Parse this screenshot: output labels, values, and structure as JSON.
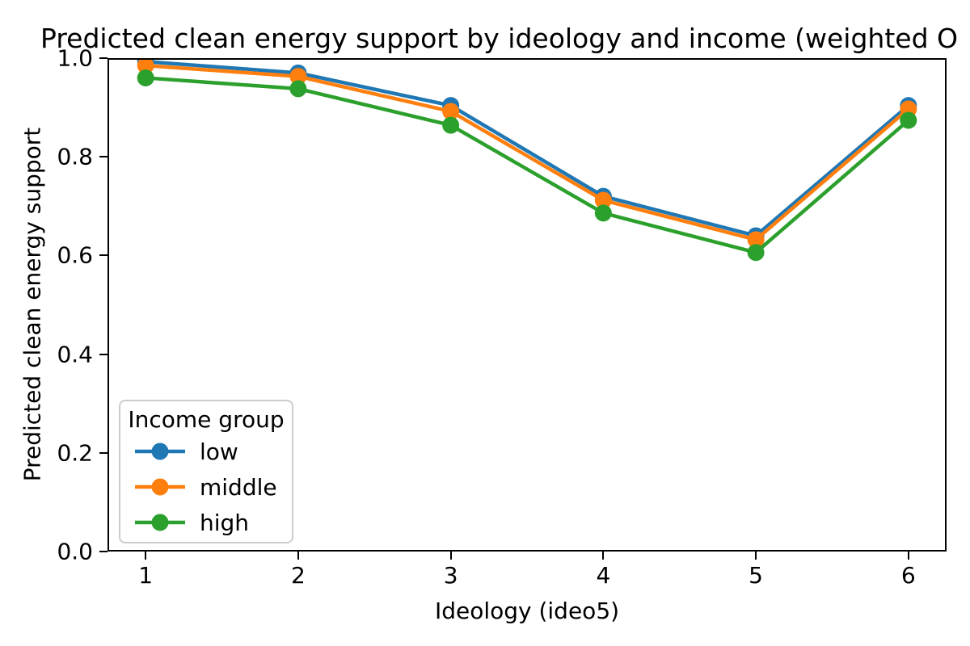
{
  "figure": {
    "background": "#ffffff",
    "axis_color": "#000000"
  },
  "chart_data": {
    "type": "line",
    "title": "Predicted clean energy support by ideology and income (weighted O",
    "xlabel": "Ideology (ideo5)",
    "ylabel": "Predicted clean energy support",
    "x": [
      1,
      2,
      3,
      4,
      5,
      6
    ],
    "xlim": [
      0.75,
      6.25
    ],
    "ylim": [
      0.0,
      1.0
    ],
    "xtick_values": [
      1,
      2,
      3,
      4,
      5,
      6
    ],
    "xtick_labels": [
      "1",
      "2",
      "3",
      "4",
      "5",
      "6"
    ],
    "ytick_values": [
      0.0,
      0.2,
      0.4,
      0.6,
      0.8,
      1.0
    ],
    "ytick_labels": [
      "0.0",
      "0.2",
      "0.4",
      "0.6",
      "0.8",
      "1.0"
    ],
    "grid": false,
    "legend": {
      "title": "Income group",
      "position": "lower-left"
    },
    "series": [
      {
        "name": "low",
        "color": "#1f77b4",
        "values": [
          0.993,
          0.97,
          0.904,
          0.72,
          0.64,
          0.904
        ]
      },
      {
        "name": "middle",
        "color": "#ff7f0e",
        "values": [
          0.985,
          0.963,
          0.892,
          0.712,
          0.632,
          0.897
        ]
      },
      {
        "name": "high",
        "color": "#2ca02c",
        "values": [
          0.96,
          0.938,
          0.864,
          0.686,
          0.606,
          0.874
        ]
      }
    ]
  }
}
